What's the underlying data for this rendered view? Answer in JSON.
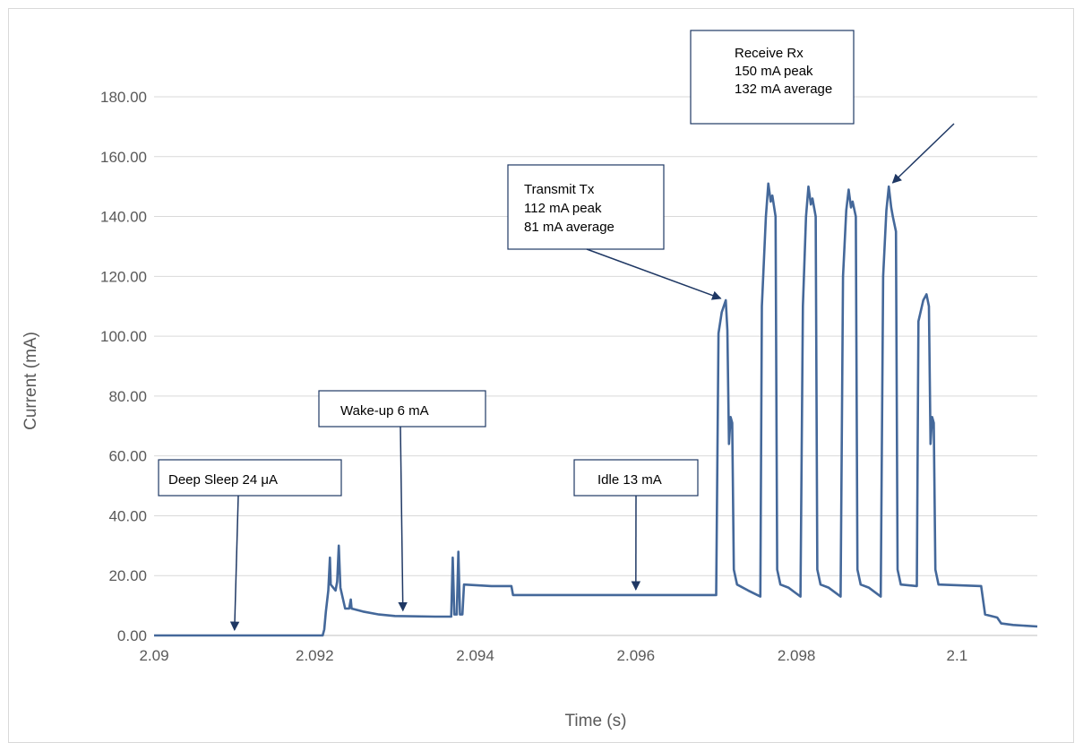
{
  "chart_data": {
    "type": "line",
    "xlabel": "Time (s)",
    "ylabel": "Current (mA)",
    "xlim": [
      2.09,
      2.101
    ],
    "ylim": [
      0,
      180
    ],
    "x_ticks": [
      "2.09",
      "2.092",
      "2.094",
      "2.096",
      "2.098",
      "2.1"
    ],
    "x_tick_values": [
      2.09,
      2.092,
      2.094,
      2.096,
      2.098,
      2.1
    ],
    "y_ticks": [
      "0.00",
      "20.00",
      "40.00",
      "60.00",
      "80.00",
      "100.00",
      "120.00",
      "140.00",
      "160.00",
      "180.00"
    ],
    "y_tick_values": [
      0,
      20,
      40,
      60,
      80,
      100,
      120,
      140,
      160,
      180
    ],
    "grid": true,
    "line_color": "#44689a",
    "series": [
      {
        "points": [
          [
            2.09,
            0.0
          ],
          [
            2.0921,
            0.0
          ],
          [
            2.09212,
            2.0
          ],
          [
            2.09214,
            8.0
          ],
          [
            2.09217,
            15.0
          ],
          [
            2.09219,
            26.0
          ],
          [
            2.0922,
            17.0
          ],
          [
            2.09226,
            15.0
          ],
          [
            2.09228,
            18.0
          ],
          [
            2.0923,
            30.0
          ],
          [
            2.09232,
            16.0
          ],
          [
            2.09238,
            9.0
          ],
          [
            2.09243,
            9.0
          ],
          [
            2.09245,
            12.0
          ],
          [
            2.09246,
            9.0
          ],
          [
            2.0926,
            8.0
          ],
          [
            2.0928,
            7.0
          ],
          [
            2.093,
            6.5
          ],
          [
            2.0935,
            6.3
          ],
          [
            2.0937,
            6.3
          ],
          [
            2.09372,
            26.0
          ],
          [
            2.09374,
            7.0
          ],
          [
            2.09377,
            7.0
          ],
          [
            2.09379,
            28.0
          ],
          [
            2.09381,
            7.0
          ],
          [
            2.09384,
            7.0
          ],
          [
            2.09386,
            17.0
          ],
          [
            2.0942,
            16.5
          ],
          [
            2.09445,
            16.5
          ],
          [
            2.09447,
            13.5
          ],
          [
            2.0965,
            13.5
          ],
          [
            2.097,
            13.5
          ],
          [
            2.09703,
            101.0
          ],
          [
            2.09707,
            108.0
          ],
          [
            2.09712,
            112.0
          ],
          [
            2.09714,
            102.0
          ],
          [
            2.09716,
            64.0
          ],
          [
            2.09718,
            73.0
          ],
          [
            2.0972,
            71.0
          ],
          [
            2.09722,
            22.0
          ],
          [
            2.09726,
            17.0
          ],
          [
            2.0974,
            15.0
          ],
          [
            2.09755,
            13.0
          ],
          [
            2.09757,
            110.0
          ],
          [
            2.09762,
            140.0
          ],
          [
            2.09765,
            151.0
          ],
          [
            2.09768,
            145.0
          ],
          [
            2.0977,
            147.0
          ],
          [
            2.09774,
            140.0
          ],
          [
            2.09776,
            22.0
          ],
          [
            2.0978,
            17.0
          ],
          [
            2.0979,
            16.0
          ],
          [
            2.09805,
            13.0
          ],
          [
            2.09808,
            110.0
          ],
          [
            2.09812,
            140.0
          ],
          [
            2.09815,
            150.0
          ],
          [
            2.09818,
            144.0
          ],
          [
            2.0982,
            146.0
          ],
          [
            2.09824,
            140.0
          ],
          [
            2.09826,
            22.0
          ],
          [
            2.0983,
            17.0
          ],
          [
            2.0984,
            16.0
          ],
          [
            2.09855,
            13.0
          ],
          [
            2.09858,
            120.0
          ],
          [
            2.09862,
            142.0
          ],
          [
            2.09865,
            149.0
          ],
          [
            2.09868,
            143.0
          ],
          [
            2.0987,
            145.0
          ],
          [
            2.09874,
            140.0
          ],
          [
            2.09876,
            22.0
          ],
          [
            2.0988,
            17.0
          ],
          [
            2.0989,
            16.0
          ],
          [
            2.09905,
            13.0
          ],
          [
            2.09908,
            120.0
          ],
          [
            2.09912,
            142.0
          ],
          [
            2.09915,
            150.0
          ],
          [
            2.09918,
            143.0
          ],
          [
            2.0992,
            140.0
          ],
          [
            2.09924,
            135.0
          ],
          [
            2.09926,
            22.0
          ],
          [
            2.0993,
            17.0
          ],
          [
            2.0995,
            16.5
          ],
          [
            2.09952,
            105.0
          ],
          [
            2.09958,
            112.0
          ],
          [
            2.09962,
            114.0
          ],
          [
            2.09965,
            110.0
          ],
          [
            2.09967,
            64.0
          ],
          [
            2.09969,
            73.0
          ],
          [
            2.09971,
            71.0
          ],
          [
            2.09973,
            22.0
          ],
          [
            2.09977,
            17.0
          ],
          [
            2.1003,
            16.5
          ],
          [
            2.10035,
            7.0
          ],
          [
            2.1005,
            6.0
          ],
          [
            2.10055,
            4.0
          ],
          [
            2.1007,
            3.5
          ],
          [
            2.101,
            3.0
          ]
        ]
      }
    ],
    "annotations": [
      {
        "lines": [
          "Deep Sleep 24 μA"
        ],
        "target": [
          2.091,
          0.0
        ]
      },
      {
        "lines": [
          "Wake-up 6 mA"
        ],
        "target": [
          2.0931,
          6.5
        ]
      },
      {
        "lines": [
          "Idle 13 mA"
        ],
        "target": [
          2.096,
          13.5
        ]
      },
      {
        "lines": [
          "Transmit Tx",
          "112 mA peak",
          "81 mA average"
        ],
        "target": [
          2.09712,
          112.0
        ]
      },
      {
        "lines": [
          "Receive Rx",
          "150 mA peak",
          "132 mA average"
        ],
        "target": [
          2.09915,
          150.0
        ]
      }
    ]
  }
}
